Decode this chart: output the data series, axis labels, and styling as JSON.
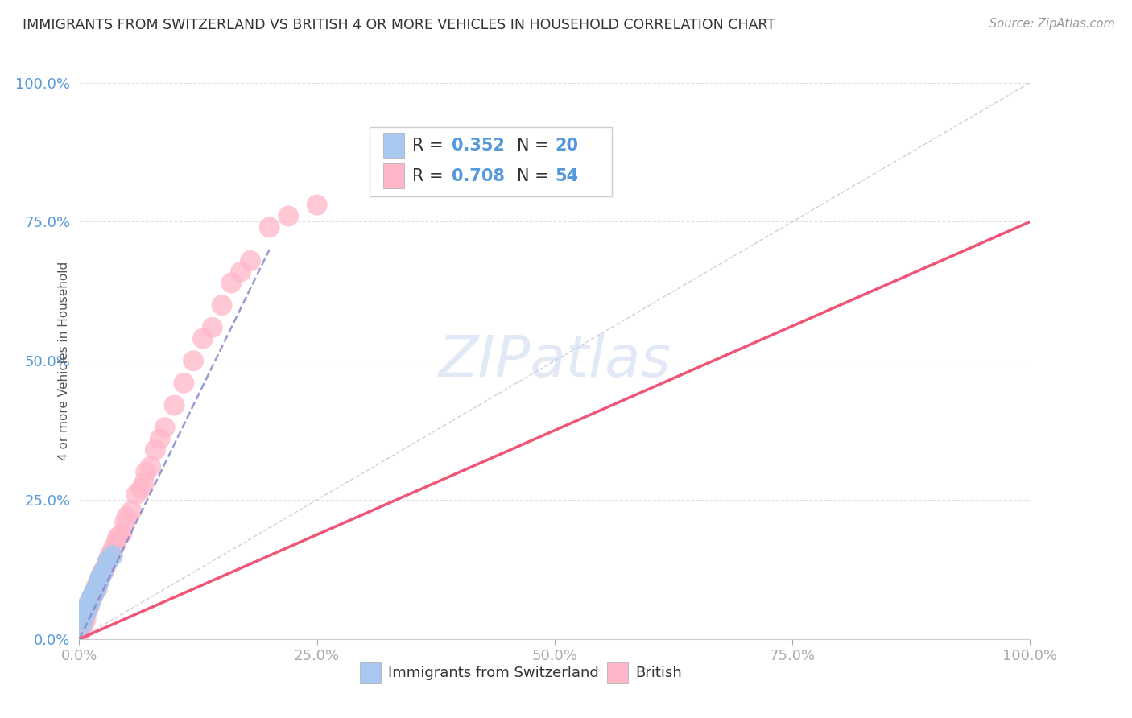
{
  "title": "IMMIGRANTS FROM SWITZERLAND VS BRITISH 4 OR MORE VEHICLES IN HOUSEHOLD CORRELATION CHART",
  "source": "Source: ZipAtlas.com",
  "ylabel": "4 or more Vehicles in Household",
  "xlim": [
    0,
    100
  ],
  "ylim": [
    0,
    100
  ],
  "blue_color": "#A8C8F0",
  "pink_color": "#FFB6C8",
  "blue_line_color": "#8888CC",
  "pink_line_color": "#EE5577",
  "blue_R": 0.352,
  "blue_N": 20,
  "pink_R": 0.708,
  "pink_N": 54,
  "title_color": "#333333",
  "tick_color": "#5599DD",
  "grid_color": "#DDDDDD",
  "background_color": "#FFFFFF",
  "watermark_color": "#C8D8EE",
  "blue_scatter_x": [
    0.3,
    0.5,
    0.7,
    1.0,
    1.2,
    1.5,
    1.8,
    2.0,
    2.5,
    3.0,
    0.8,
    1.1,
    1.6,
    2.2,
    0.4,
    0.9,
    0.2,
    0.6,
    1.3,
    3.5
  ],
  "blue_scatter_y": [
    3.5,
    4.0,
    5.5,
    6.0,
    7.0,
    8.0,
    9.0,
    10.0,
    12.0,
    14.0,
    5.0,
    6.5,
    8.5,
    11.0,
    4.5,
    5.5,
    2.5,
    4.8,
    7.5,
    15.0
  ],
  "pink_scatter_x": [
    0.2,
    0.5,
    0.8,
    1.0,
    1.5,
    2.0,
    2.5,
    3.0,
    3.5,
    4.0,
    5.0,
    6.0,
    7.0,
    8.0,
    10.0,
    12.0,
    15.0,
    18.0,
    20.0,
    25.0,
    0.3,
    0.6,
    0.9,
    1.2,
    1.8,
    2.2,
    2.8,
    3.2,
    4.5,
    5.5,
    6.5,
    7.5,
    9.0,
    11.0,
    13.0,
    16.0,
    0.4,
    0.7,
    1.1,
    1.6,
    2.3,
    3.8,
    4.8,
    6.8,
    8.5,
    14.0,
    17.0,
    22.0,
    0.1,
    0.3,
    1.4,
    1.9,
    2.6,
    4.2
  ],
  "pink_scatter_y": [
    1.5,
    3.0,
    5.0,
    6.5,
    8.0,
    10.0,
    12.0,
    14.0,
    16.0,
    18.0,
    22.0,
    26.0,
    30.0,
    34.0,
    42.0,
    50.0,
    60.0,
    68.0,
    74.0,
    78.0,
    2.0,
    4.0,
    5.5,
    7.0,
    9.5,
    11.0,
    13.0,
    15.0,
    19.0,
    23.0,
    27.0,
    31.0,
    38.0,
    46.0,
    54.0,
    64.0,
    2.5,
    3.5,
    6.0,
    8.5,
    11.5,
    17.0,
    21.0,
    28.0,
    36.0,
    56.0,
    66.0,
    76.0,
    1.0,
    2.0,
    7.5,
    9.0,
    12.5,
    18.5
  ]
}
